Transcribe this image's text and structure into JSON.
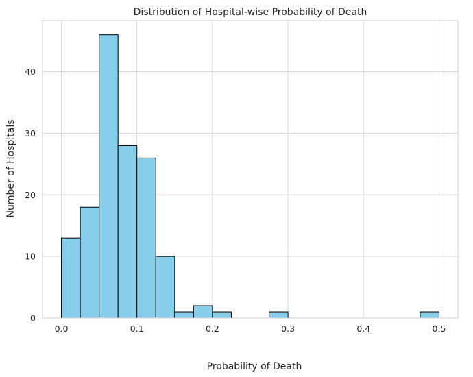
{
  "chart_data": {
    "type": "bar",
    "subtype": "histogram",
    "title": "Distribution of Hospital-wise Probability of Death",
    "xlabel": "Probability of Death",
    "ylabel": "Number of Hospitals",
    "xlim": [
      -0.025,
      0.525
    ],
    "ylim": [
      0,
      48.3
    ],
    "xticks": [
      0.0,
      0.1,
      0.2,
      0.3,
      0.4,
      0.5
    ],
    "xtick_labels": [
      "0.0",
      "0.1",
      "0.2",
      "0.3",
      "0.4",
      "0.5"
    ],
    "yticks": [
      0,
      10,
      20,
      30,
      40
    ],
    "ytick_labels": [
      "0",
      "10",
      "20",
      "30",
      "40"
    ],
    "bin_edges": [
      0.0,
      0.025,
      0.05,
      0.075,
      0.1,
      0.125,
      0.15,
      0.175,
      0.2,
      0.225,
      0.25,
      0.275,
      0.3,
      0.325,
      0.35,
      0.375,
      0.4,
      0.425,
      0.45,
      0.475,
      0.5
    ],
    "counts": [
      13,
      18,
      46,
      28,
      26,
      10,
      1,
      2,
      1,
      0,
      0,
      1,
      0,
      0,
      0,
      0,
      0,
      0,
      0,
      1
    ],
    "bar_color": "#87ceeb",
    "edge_color": "#000000",
    "grid": true
  }
}
